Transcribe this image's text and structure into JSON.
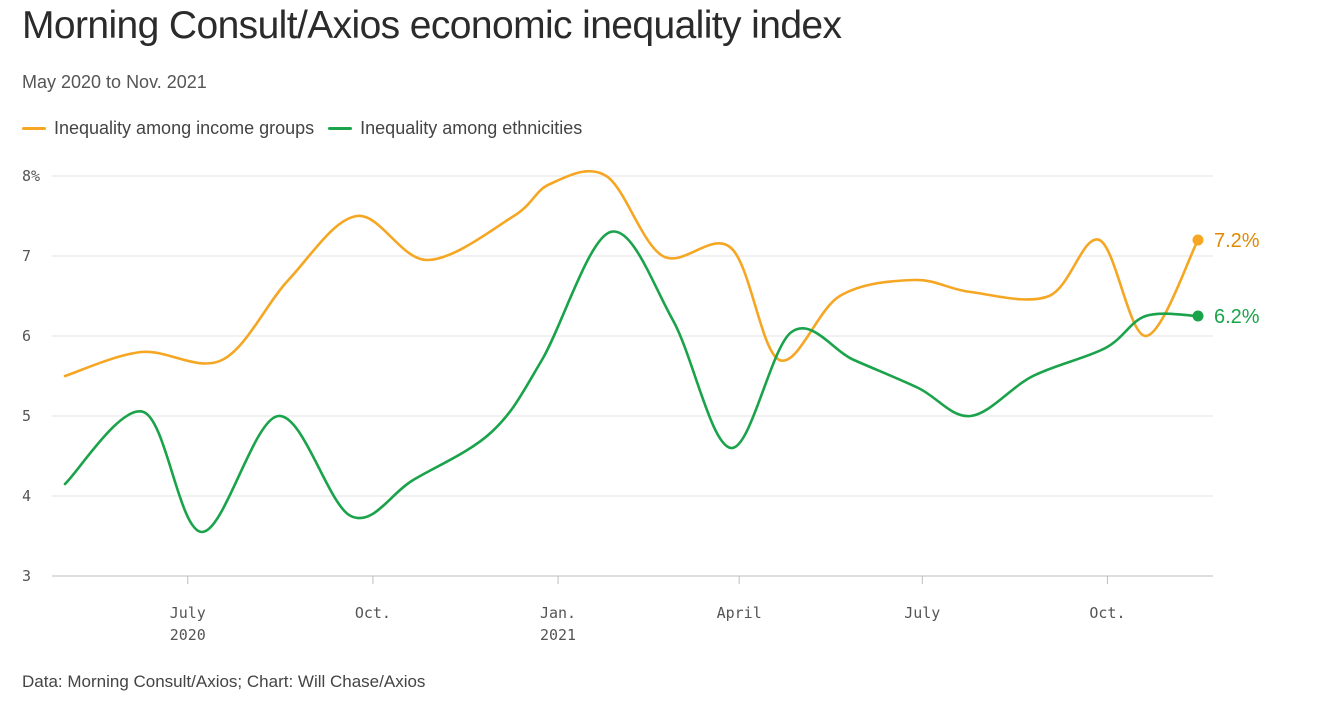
{
  "header": {
    "title": "Morning Consult/Axios economic inequality index",
    "subtitle": "May 2020 to Nov. 2021"
  },
  "footer": {
    "source": "Data: Morning Consult/Axios; Chart: Will Chase/Axios"
  },
  "chart_data": {
    "type": "line",
    "x_axis": {
      "ticks": [
        {
          "date": "2020-07-01",
          "label": [
            "July",
            "2020"
          ]
        },
        {
          "date": "2020-10-01",
          "label": [
            "Oct."
          ]
        },
        {
          "date": "2021-01-01",
          "label": [
            "Jan.",
            "2021"
          ]
        },
        {
          "date": "2021-04-01",
          "label": [
            "April"
          ]
        },
        {
          "date": "2021-07-01",
          "label": [
            "July"
          ]
        },
        {
          "date": "2021-10-01",
          "label": [
            "Oct."
          ]
        }
      ],
      "xlim": [
        "2020-05-01",
        "2021-11-15"
      ]
    },
    "y_axis": {
      "ticks": [
        3,
        4,
        5,
        6,
        7,
        8
      ],
      "tick_labels": [
        "3",
        "4",
        "5",
        "6",
        "7",
        "8%"
      ],
      "ylim": [
        3,
        8
      ],
      "grid": true
    },
    "legend_placement": "top-left",
    "series": [
      {
        "name": "Inequality among income groups",
        "color": "#f5a623",
        "label_color": "#e08a00",
        "end_label": "7.2%",
        "points": [
          [
            "2020-05-01",
            5.5
          ],
          [
            "2020-06-08",
            5.8
          ],
          [
            "2020-07-18",
            5.7
          ],
          [
            "2020-08-20",
            6.7
          ],
          [
            "2020-09-23",
            7.5
          ],
          [
            "2020-10-28",
            6.95
          ],
          [
            "2020-12-10",
            7.5
          ],
          [
            "2020-12-28",
            7.9
          ],
          [
            "2021-01-25",
            8.0
          ],
          [
            "2021-02-22",
            7.0
          ],
          [
            "2021-03-28",
            7.1
          ],
          [
            "2021-04-21",
            5.7
          ],
          [
            "2021-05-21",
            6.5
          ],
          [
            "2021-06-27",
            6.7
          ],
          [
            "2021-07-25",
            6.55
          ],
          [
            "2021-09-02",
            6.5
          ],
          [
            "2021-09-27",
            7.2
          ],
          [
            "2021-10-20",
            6.0
          ],
          [
            "2021-11-15",
            7.2
          ]
        ]
      },
      {
        "name": "Inequality among ethnicities",
        "color": "#1aa34a",
        "label_color": "#1aa34a",
        "end_label": "6.2%",
        "points": [
          [
            "2020-05-01",
            4.15
          ],
          [
            "2020-06-09",
            5.05
          ],
          [
            "2020-07-08",
            3.55
          ],
          [
            "2020-08-15",
            5.0
          ],
          [
            "2020-09-20",
            3.75
          ],
          [
            "2020-10-21",
            4.2
          ],
          [
            "2020-11-29",
            4.8
          ],
          [
            "2020-12-24",
            5.7
          ],
          [
            "2021-01-27",
            7.3
          ],
          [
            "2021-02-27",
            6.2
          ],
          [
            "2021-03-28",
            4.6
          ],
          [
            "2021-04-27",
            6.05
          ],
          [
            "2021-05-28",
            5.7
          ],
          [
            "2021-06-29",
            5.35
          ],
          [
            "2021-07-25",
            5.0
          ],
          [
            "2021-08-25",
            5.5
          ],
          [
            "2021-09-30",
            5.85
          ],
          [
            "2021-10-20",
            6.25
          ],
          [
            "2021-11-15",
            6.25
          ]
        ]
      }
    ]
  }
}
